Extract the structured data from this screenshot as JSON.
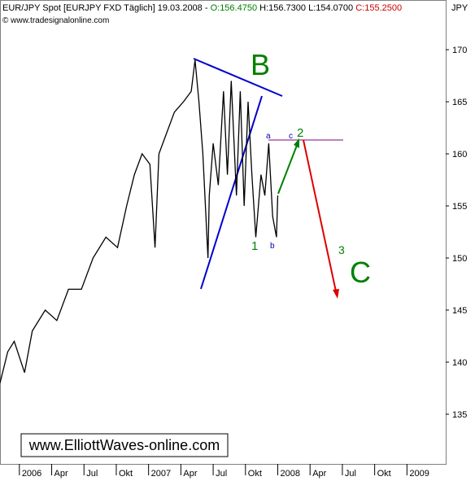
{
  "header": {
    "instrument": "EUR/JPY Spot [EURJPY FXD  Täglich] 19.03.2008 -",
    "open": "O:156.4750",
    "high": "H:156.7300",
    "low": "L:154.0700",
    "close": "C:155.2500",
    "copyright": "© www.tradesignalonline.com",
    "watermark": "www.ElliottWaves-online.com"
  },
  "chart_data": {
    "type": "line",
    "y_unit": "JPY",
    "color": "#000000",
    "x": [
      2005.85,
      2005.91,
      2005.96,
      2006.04,
      2006.1,
      2006.2,
      2006.29,
      2006.38,
      2006.48,
      2006.57,
      2006.67,
      2006.76,
      2006.83,
      2006.89,
      2006.95,
      2007.01,
      2007.05,
      2007.08,
      2007.14,
      2007.2,
      2007.27,
      2007.33,
      2007.36,
      2007.39,
      2007.42,
      2007.46,
      2007.47,
      2007.5,
      2007.54,
      2007.58,
      2007.61,
      2007.64,
      2007.68,
      2007.71,
      2007.74,
      2007.77,
      2007.8,
      2007.83,
      2007.87,
      2007.9,
      2007.93,
      2007.96,
      2007.99,
      2008.0
    ],
    "values": [
      138,
      141,
      142,
      139,
      143,
      145,
      144,
      147,
      147,
      150,
      152,
      151,
      155,
      158,
      160,
      159,
      151,
      160,
      162,
      164,
      165,
      166,
      169,
      165,
      160,
      150,
      156,
      161,
      157,
      166,
      158,
      167,
      156,
      166,
      155,
      165,
      158,
      152,
      158,
      156,
      161,
      154,
      152,
      156
    ],
    "xlim": [
      2005.85,
      2009.3
    ],
    "ylim": [
      130.23,
      174.77
    ],
    "yticks": [
      135,
      140,
      145,
      150,
      155,
      160,
      165,
      170
    ],
    "xticks": [
      {
        "value": 2006,
        "label": "2006"
      },
      {
        "value": 2006.25,
        "label": "Apr"
      },
      {
        "value": 2006.5,
        "label": "Jul"
      },
      {
        "value": 2006.75,
        "label": "Okt"
      },
      {
        "value": 2007,
        "label": "2007"
      },
      {
        "value": 2007.25,
        "label": "Apr"
      },
      {
        "value": 2007.5,
        "label": "Jul"
      },
      {
        "value": 2007.75,
        "label": "Okt"
      },
      {
        "value": 2008,
        "label": "2008"
      },
      {
        "value": 2008.25,
        "label": "Apr"
      },
      {
        "value": 2008.5,
        "label": "Jul"
      },
      {
        "value": 2008.75,
        "label": "Okt"
      },
      {
        "value": 2009,
        "label": "2009"
      }
    ],
    "wave_labels": [
      "B",
      "C",
      "1",
      "2",
      "3",
      "a",
      "b",
      "c"
    ]
  }
}
